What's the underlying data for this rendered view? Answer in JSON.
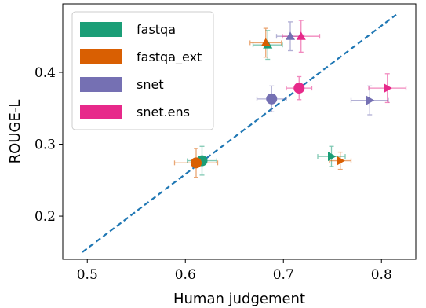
{
  "chart_data": {
    "type": "scatter",
    "xlabel": "Human judgement",
    "ylabel": "ROUGE-L",
    "xlim": [
      0.475,
      0.835
    ],
    "ylim": [
      0.14,
      0.495
    ],
    "xticks": [
      0.5,
      0.6,
      0.7,
      0.8
    ],
    "yticks": [
      0.2,
      0.3,
      0.4
    ],
    "xtick_labels": [
      "0.5",
      "0.6",
      "0.7",
      "0.8"
    ],
    "ytick_labels": [
      "0.2",
      "0.3",
      "0.4"
    ],
    "grid": false,
    "legend_position": "top-left",
    "reference_line": {
      "from": [
        0.495,
        0.15
      ],
      "to": [
        0.815,
        0.48
      ],
      "color": "#1f77b4",
      "style": "dashed"
    },
    "series": [
      {
        "name": "fastqa",
        "color": "#1b9e77",
        "points": [
          {
            "x": 0.617,
            "y": 0.277,
            "marker": "circle",
            "xerr": 0.015,
            "yerr": 0.02
          },
          {
            "x": 0.684,
            "y": 0.438,
            "marker": "triangle-up",
            "xerr": 0.015,
            "yerr": 0.02
          },
          {
            "x": 0.749,
            "y": 0.283,
            "marker": "triangle-right",
            "xerr": 0.014,
            "yerr": 0.014
          }
        ]
      },
      {
        "name": "fastqa_ext",
        "color": "#d95f02",
        "points": [
          {
            "x": 0.611,
            "y": 0.274,
            "marker": "circle",
            "xerr": 0.022,
            "yerr": 0.02
          },
          {
            "x": 0.682,
            "y": 0.441,
            "marker": "triangle-up",
            "xerr": 0.016,
            "yerr": 0.02
          },
          {
            "x": 0.758,
            "y": 0.277,
            "marker": "triangle-right",
            "xerr": 0.011,
            "yerr": 0.012
          }
        ]
      },
      {
        "name": "snet",
        "color": "#7570b3",
        "points": [
          {
            "x": 0.688,
            "y": 0.363,
            "marker": "circle",
            "xerr": 0.015,
            "yerr": 0.018
          },
          {
            "x": 0.707,
            "y": 0.45,
            "marker": "triangle-up",
            "xerr": 0.014,
            "yerr": 0.02
          },
          {
            "x": 0.788,
            "y": 0.361,
            "marker": "triangle-right",
            "xerr": 0.019,
            "yerr": 0.02
          }
        ]
      },
      {
        "name": "snet.ens",
        "color": "#e7298a",
        "points": [
          {
            "x": 0.716,
            "y": 0.378,
            "marker": "circle",
            "xerr": 0.013,
            "yerr": 0.016
          },
          {
            "x": 0.718,
            "y": 0.45,
            "marker": "triangle-up",
            "xerr": 0.019,
            "yerr": 0.022
          },
          {
            "x": 0.806,
            "y": 0.378,
            "marker": "triangle-right",
            "xerr": 0.019,
            "yerr": 0.02
          }
        ]
      }
    ]
  }
}
